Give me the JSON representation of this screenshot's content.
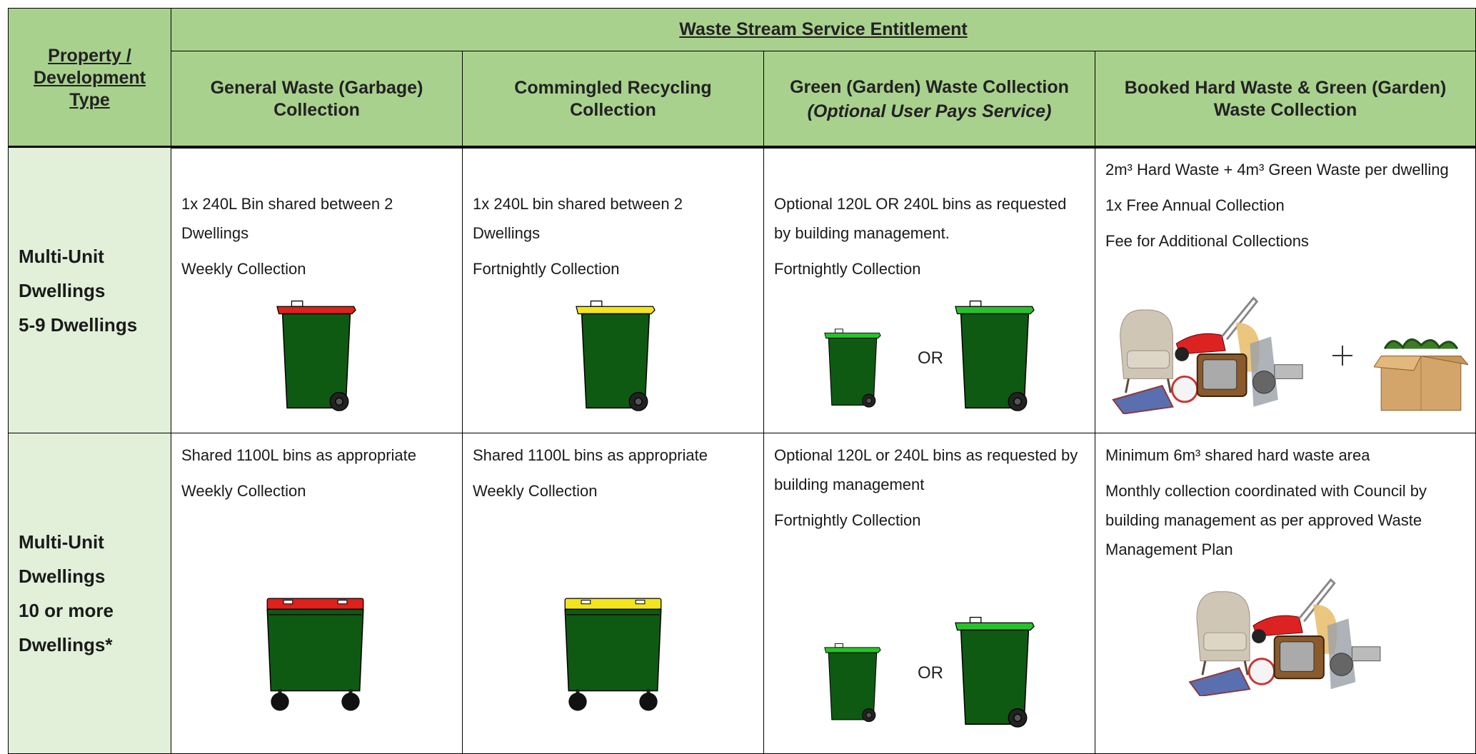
{
  "header": {
    "row_header": "Property / Development Type",
    "group_title": "Waste Stream Service Entitlement",
    "columns": [
      {
        "title": "General Waste (Garbage) Collection"
      },
      {
        "title": "Commingled Recycling Collection"
      },
      {
        "title": "Green (Garden) Waste Collection",
        "subtitle": "(Optional User Pays Service)"
      },
      {
        "title": "Booked Hard Waste & Green (Garden) Waste Collection"
      }
    ]
  },
  "rows": [
    {
      "label": [
        "Multi-Unit",
        "Dwellings",
        "5-9 Dwellings"
      ],
      "cells": [
        {
          "lines": [
            "1x 240L Bin shared between 2 Dwellings",
            "Weekly Collection"
          ]
        },
        {
          "lines": [
            "1x 240L bin shared between 2 Dwellings",
            "Fortnightly Collection"
          ]
        },
        {
          "lines": [
            "Optional 120L OR 240L bins as requested by building management.",
            "Fortnightly Collection"
          ],
          "separator": "OR"
        },
        {
          "lines": [
            "2m³ Hard Waste + 4m³ Green Waste per dwelling",
            "1x Free Annual Collection",
            "Fee for Additional Collections"
          ]
        }
      ]
    },
    {
      "label": [
        "Multi-Unit",
        "Dwellings",
        "10 or more",
        "Dwellings*"
      ],
      "cells": [
        {
          "lines": [
            "Shared 1100L bins as appropriate",
            "Weekly Collection"
          ]
        },
        {
          "lines": [
            "Shared 1100L bins as appropriate",
            "Weekly Collection"
          ]
        },
        {
          "lines": [
            "Optional 120L or 240L bins as requested by building management",
            "Fortnightly Collection"
          ],
          "separator": "OR"
        },
        {
          "lines": [
            "Minimum 6m³ shared hard waste area",
            "Monthly collection coordinated with Council  by building management as per approved Waste Management Plan"
          ]
        }
      ]
    }
  ]
}
